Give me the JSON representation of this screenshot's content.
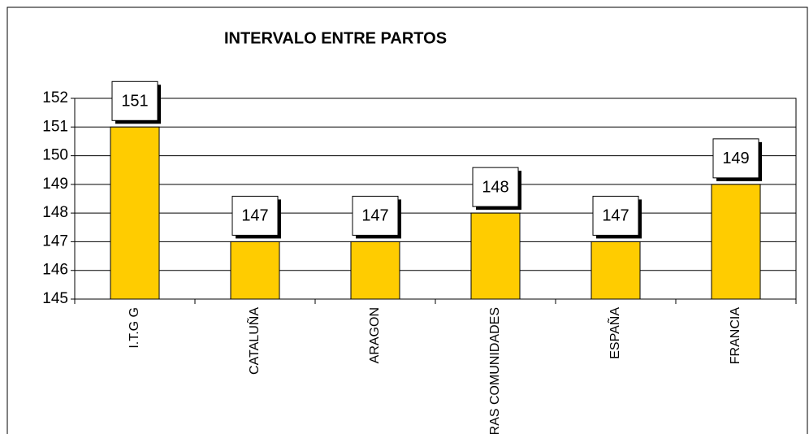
{
  "chart_data": {
    "type": "bar",
    "title": "INTERVALO ENTRE PARTOS",
    "categories": [
      "I.T.G G",
      "CATALUÑA",
      "ARAGON",
      "OTRAS COMUNIDADES",
      "ESPAÑA",
      "FRANCIA"
    ],
    "values": [
      151,
      147,
      147,
      148,
      147,
      149
    ],
    "color": "#ffcc00",
    "ylim": [
      145,
      152
    ],
    "yticks": [
      145,
      146,
      147,
      148,
      149,
      150,
      151,
      152
    ],
    "grid": true
  }
}
